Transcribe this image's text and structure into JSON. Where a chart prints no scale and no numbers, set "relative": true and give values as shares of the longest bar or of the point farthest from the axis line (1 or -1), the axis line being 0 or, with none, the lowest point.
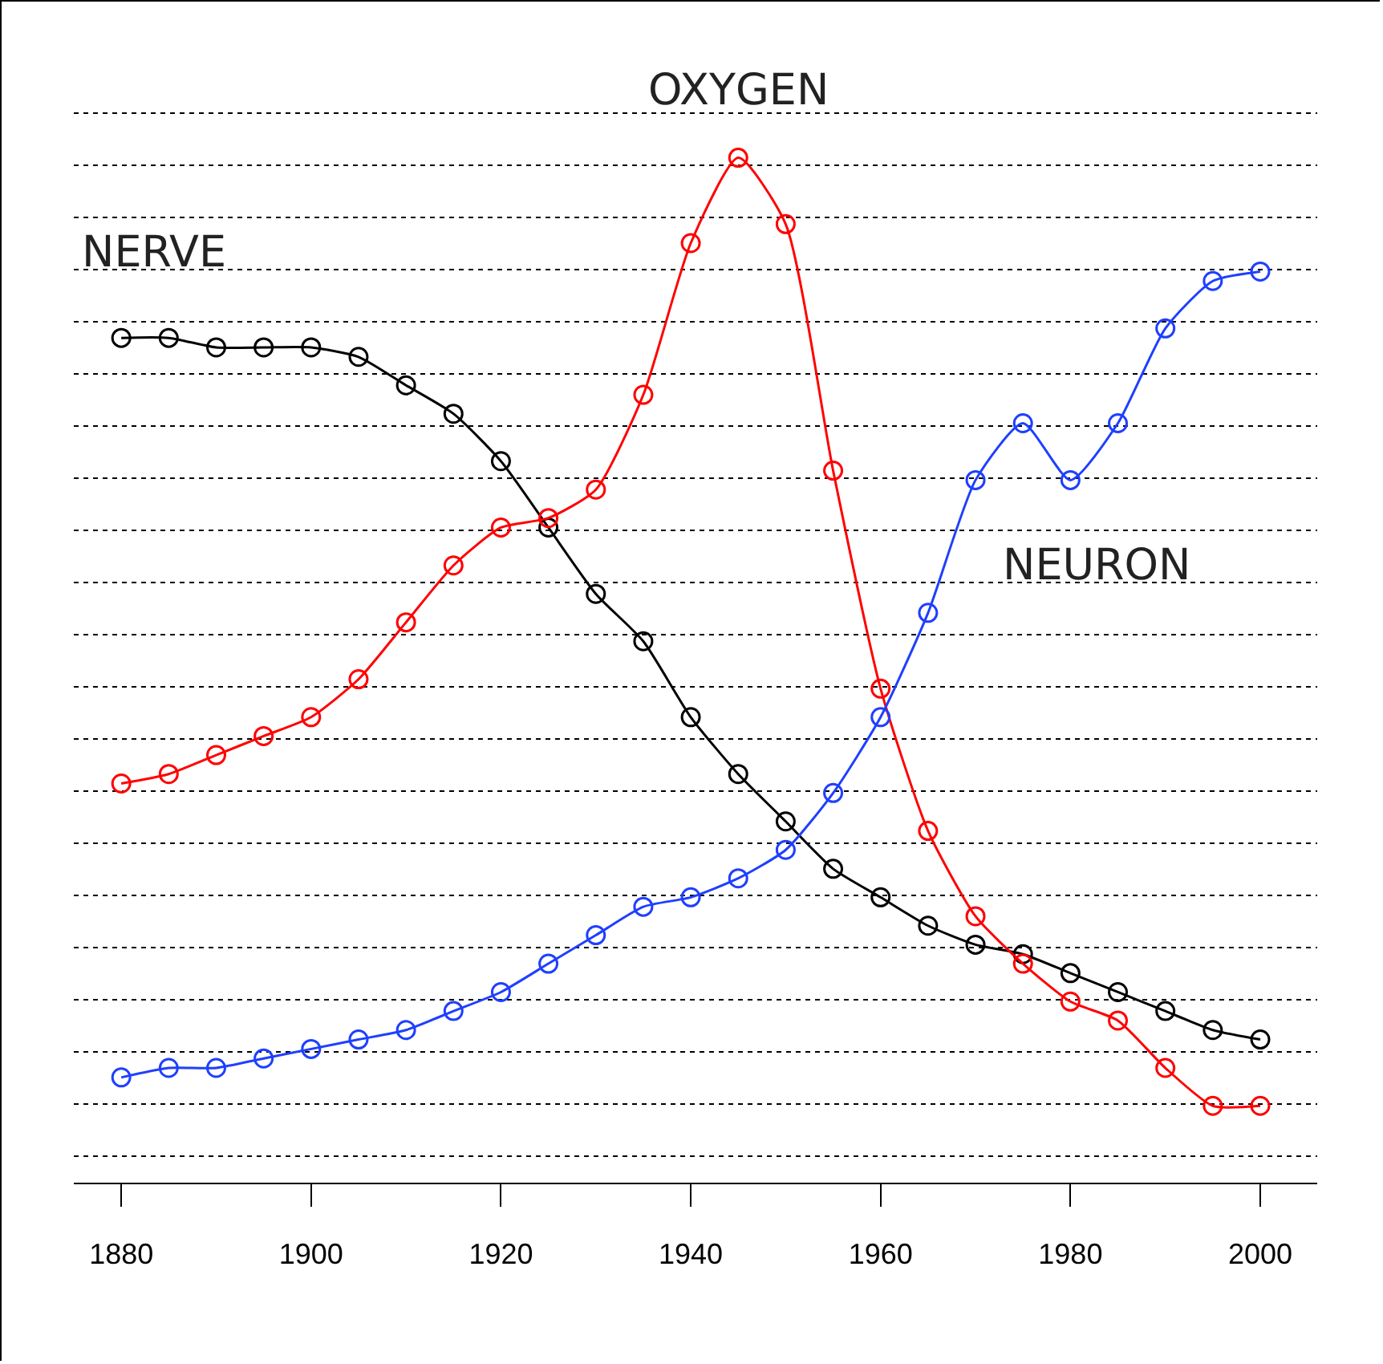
{
  "chart_data": {
    "type": "line",
    "relative": true,
    "x": [
      1880,
      1885,
      1890,
      1895,
      1900,
      1905,
      1910,
      1915,
      1920,
      1925,
      1930,
      1935,
      1940,
      1945,
      1950,
      1955,
      1960,
      1965,
      1970,
      1975,
      1980,
      1985,
      1990,
      1995,
      2000
    ],
    "xlim": [
      1875,
      2006
    ],
    "xticks": [
      1880,
      1900,
      1920,
      1940,
      1960,
      1980,
      2000
    ],
    "grid": "y",
    "marker": "circle",
    "line_style": "solid",
    "legend": false,
    "series": [
      {
        "name": "NERVE",
        "color": "#000000",
        "values": [
          0.81,
          0.81,
          0.8,
          0.8,
          0.8,
          0.79,
          0.76,
          0.73,
          0.68,
          0.61,
          0.54,
          0.49,
          0.41,
          0.35,
          0.3,
          0.25,
          0.22,
          0.19,
          0.17,
          0.16,
          0.14,
          0.12,
          0.1,
          0.08,
          0.07
        ]
      },
      {
        "name": "OXYGEN",
        "color": "#ff0000",
        "values": [
          0.34,
          0.35,
          0.37,
          0.39,
          0.41,
          0.45,
          0.51,
          0.57,
          0.61,
          0.62,
          0.65,
          0.75,
          0.91,
          1,
          0.93,
          0.67,
          0.44,
          0.29,
          0.2,
          0.15,
          0.11,
          0.09,
          0.04,
          0.0,
          0
        ]
      },
      {
        "name": "NEURON",
        "color": "#1f3fff",
        "values": [
          0.03,
          0.04,
          0.04,
          0.05,
          0.06,
          0.07,
          0.08,
          0.1,
          0.12,
          0.15,
          0.18,
          0.21,
          0.22,
          0.24,
          0.27,
          0.33,
          0.41,
          0.52,
          0.66,
          0.72,
          0.66,
          0.72,
          0.82,
          0.87,
          0.88
        ]
      }
    ]
  }
}
